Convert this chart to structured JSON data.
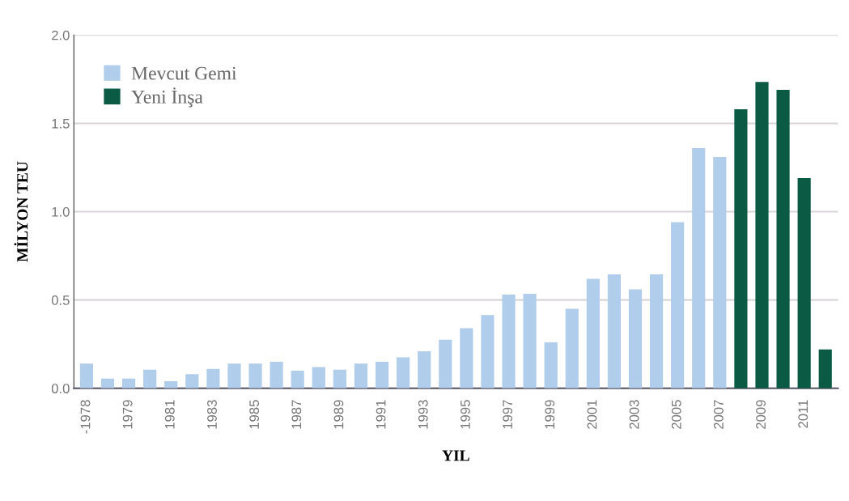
{
  "chart_data": {
    "type": "bar",
    "xlabel": "YIL",
    "ylabel": "MİLYON TEU",
    "categories": [
      "-1978",
      null,
      "1979",
      null,
      "1981",
      null,
      "1983",
      null,
      "1985",
      null,
      "1987",
      null,
      "1989",
      null,
      "1991",
      null,
      "1993",
      null,
      "1995",
      null,
      "1997",
      null,
      "1999",
      null,
      "2001",
      null,
      "2003",
      null,
      "2005",
      null,
      "2007",
      null,
      "2009",
      null,
      "2011",
      null
    ],
    "series": [
      {
        "name": "Mevcut Gemi",
        "color": "#b0cdec",
        "values": [
          0.14,
          0.055,
          0.055,
          0.105,
          0.04,
          0.08,
          0.11,
          0.14,
          0.14,
          0.15,
          0.1,
          0.12,
          0.105,
          0.14,
          0.15,
          0.175,
          0.21,
          0.275,
          0.34,
          0.415,
          0.53,
          0.535,
          0.26,
          0.45,
          0.62,
          0.645,
          0.56,
          0.645,
          0.94,
          1.36,
          1.31,
          null,
          null,
          null,
          null,
          null
        ]
      },
      {
        "name": "Yeni İnşa",
        "color": "#0b5a44",
        "values": [
          null,
          null,
          null,
          null,
          null,
          null,
          null,
          null,
          null,
          null,
          null,
          null,
          null,
          null,
          null,
          null,
          null,
          null,
          null,
          null,
          null,
          null,
          null,
          null,
          null,
          null,
          null,
          null,
          null,
          null,
          null,
          1.58,
          1.735,
          1.69,
          1.19,
          0.22
        ]
      }
    ],
    "ylim": [
      0,
      2.0
    ],
    "yticks": [
      {
        "value": 0,
        "label": "0.0"
      },
      {
        "value": 0.5,
        "label": "0.5"
      },
      {
        "value": 1.0,
        "label": "1.0"
      },
      {
        "value": 1.5,
        "label": "1.5"
      },
      {
        "value": 2.0,
        "label": "2.0"
      }
    ],
    "grid": "y",
    "legend": "top left"
  }
}
